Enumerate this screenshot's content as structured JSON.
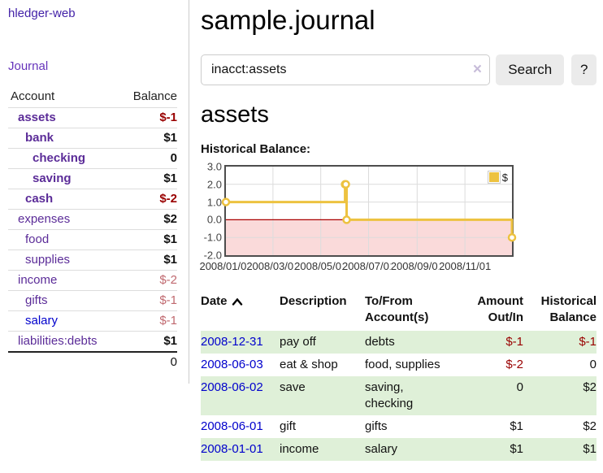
{
  "app": {
    "brand": "hledger-web",
    "nav_journal": "Journal"
  },
  "sidebar": {
    "table_headers": {
      "account": "Account",
      "balance": "Balance"
    },
    "accounts": [
      {
        "name": "assets",
        "indent": 0,
        "bold": true,
        "balance": "$-1",
        "balance_style": "neg-strong",
        "link_color": "purple"
      },
      {
        "name": "bank",
        "indent": 1,
        "bold": true,
        "balance": "$1",
        "balance_style": "pos",
        "link_color": "purple"
      },
      {
        "name": "checking",
        "indent": 2,
        "bold": true,
        "balance": "0",
        "balance_style": "pos",
        "link_color": "purple"
      },
      {
        "name": "saving",
        "indent": 2,
        "bold": true,
        "balance": "$1",
        "balance_style": "pos",
        "link_color": "purple"
      },
      {
        "name": "cash",
        "indent": 1,
        "bold": true,
        "balance": "$-2",
        "balance_style": "neg-strong",
        "link_color": "purple"
      },
      {
        "name": "expenses",
        "indent": 0,
        "bold": false,
        "balance": "$2",
        "balance_style": "pos",
        "link_color": "purple"
      },
      {
        "name": "food",
        "indent": 1,
        "bold": false,
        "balance": "$1",
        "balance_style": "pos",
        "link_color": "purple"
      },
      {
        "name": "supplies",
        "indent": 1,
        "bold": false,
        "balance": "$1",
        "balance_style": "pos",
        "link_color": "purple"
      },
      {
        "name": "income",
        "indent": 0,
        "bold": false,
        "balance": "$-2",
        "balance_style": "neg-soft",
        "link_color": "purple"
      },
      {
        "name": "gifts",
        "indent": 1,
        "bold": false,
        "balance": "$-1",
        "balance_style": "neg-soft",
        "link_color": "purple"
      },
      {
        "name": "salary",
        "indent": 1,
        "bold": false,
        "balance": "$-1",
        "balance_style": "neg-soft",
        "link_color": "blue"
      },
      {
        "name": "liabilities:debts",
        "indent": 0,
        "bold": false,
        "balance": "$1",
        "balance_style": "pos",
        "link_color": "purple"
      }
    ],
    "total": "0"
  },
  "header": {
    "title": "sample.journal"
  },
  "search": {
    "value": "inacct:assets",
    "clear_icon": "×",
    "search_label": "Search",
    "help_label": "?"
  },
  "account_page": {
    "heading": "assets",
    "chart_label": "Historical Balance:"
  },
  "chart_data": {
    "type": "line",
    "title": "Historical Balance:",
    "steps": true,
    "series": [
      {
        "name": "$",
        "color": "#edc240",
        "points": [
          [
            "2008-01-01",
            1
          ],
          [
            "2008-06-01",
            2
          ],
          [
            "2008-06-02",
            2
          ],
          [
            "2008-06-03",
            0
          ],
          [
            "2008-12-31",
            -1
          ]
        ]
      }
    ],
    "x_ticks": [
      "2008/01/01",
      "2008/03/01",
      "2008/05/01",
      "2008/07/01",
      "2008/09/01",
      "2008/11/01"
    ],
    "y_ticks": [
      3.0,
      2.0,
      1.0,
      0.0,
      -1.0,
      -2.0
    ],
    "xlim": [
      "2008-01-01",
      "2008-12-31"
    ],
    "ylim": [
      -2,
      3
    ],
    "grid": true,
    "legend_position": "top-right",
    "negative_region_color": "#fadada",
    "zero_line_color": "#aa0000",
    "gridline_color": "#dcdcdc",
    "border_color": "#4d4d4d"
  },
  "register": {
    "headers": {
      "date": "Date",
      "description": "Description",
      "tofrom": "To/From Account(s)",
      "amount": "Amount Out/In",
      "balance": "Historical Balance"
    },
    "rows": [
      {
        "date": "2008-12-31",
        "description": "pay off",
        "accounts": "debts",
        "amount": "$-1",
        "amount_neg": true,
        "balance": "$-1",
        "balance_neg": true,
        "shaded": true
      },
      {
        "date": "2008-06-03",
        "description": "eat & shop",
        "accounts": "food, supplies",
        "amount": "$-2",
        "amount_neg": true,
        "balance": "0",
        "balance_neg": false,
        "shaded": false
      },
      {
        "date": "2008-06-02",
        "description": "save",
        "accounts": "saving, checking",
        "amount": "0",
        "amount_neg": false,
        "balance": "$2",
        "balance_neg": false,
        "shaded": true
      },
      {
        "date": "2008-06-01",
        "description": "gift",
        "accounts": "gifts",
        "amount": "$1",
        "amount_neg": false,
        "balance": "$2",
        "balance_neg": false,
        "shaded": false
      },
      {
        "date": "2008-01-01",
        "description": "income",
        "accounts": "salary",
        "amount": "$1",
        "amount_neg": false,
        "balance": "$1",
        "balance_neg": false,
        "shaded": true
      }
    ]
  },
  "colors": {
    "brand_purple": "#4322a8",
    "link_purple": "#5b2c98",
    "link_blue": "#0000cc",
    "negative_strong": "#990000",
    "negative_soft": "#c0696f",
    "row_shaded_green": "#dff0d8",
    "chart_line": "#edc240",
    "button_gray": "#ebebeb"
  }
}
